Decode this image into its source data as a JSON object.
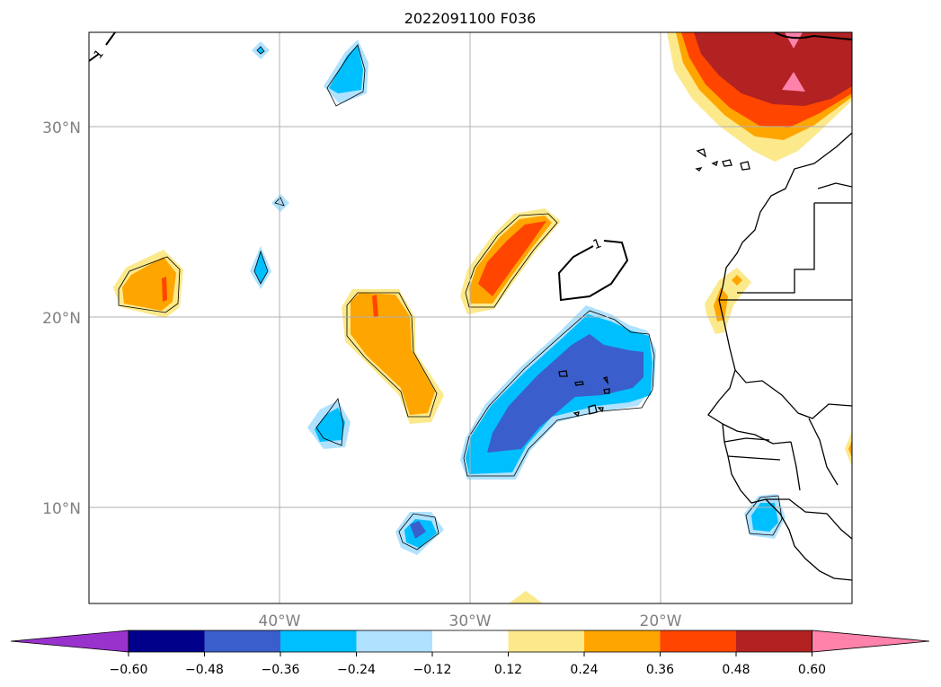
{
  "map": {
    "title": "2022091100 F036",
    "lat_labels": [
      "30°N",
      "20°N",
      "10°N"
    ],
    "lon_labels": [
      "40°W",
      "30°W",
      "20°W"
    ],
    "contour_label": "1",
    "axis_label_color": "#808080"
  },
  "colorbar": {
    "colors": [
      "#9932cc",
      "#00008b",
      "#3a5fcd",
      "#00bfff",
      "#b0e2ff",
      "#ffffff",
      "#fce98c",
      "#ffa500",
      "#ff4500",
      "#b22222",
      "#ff82ab"
    ],
    "tick_labels": [
      "−0.60",
      "−0.48",
      "−0.36",
      "−0.24",
      "−0.12",
      "0.12",
      "0.24",
      "0.36",
      "0.48",
      "0.60"
    ]
  }
}
